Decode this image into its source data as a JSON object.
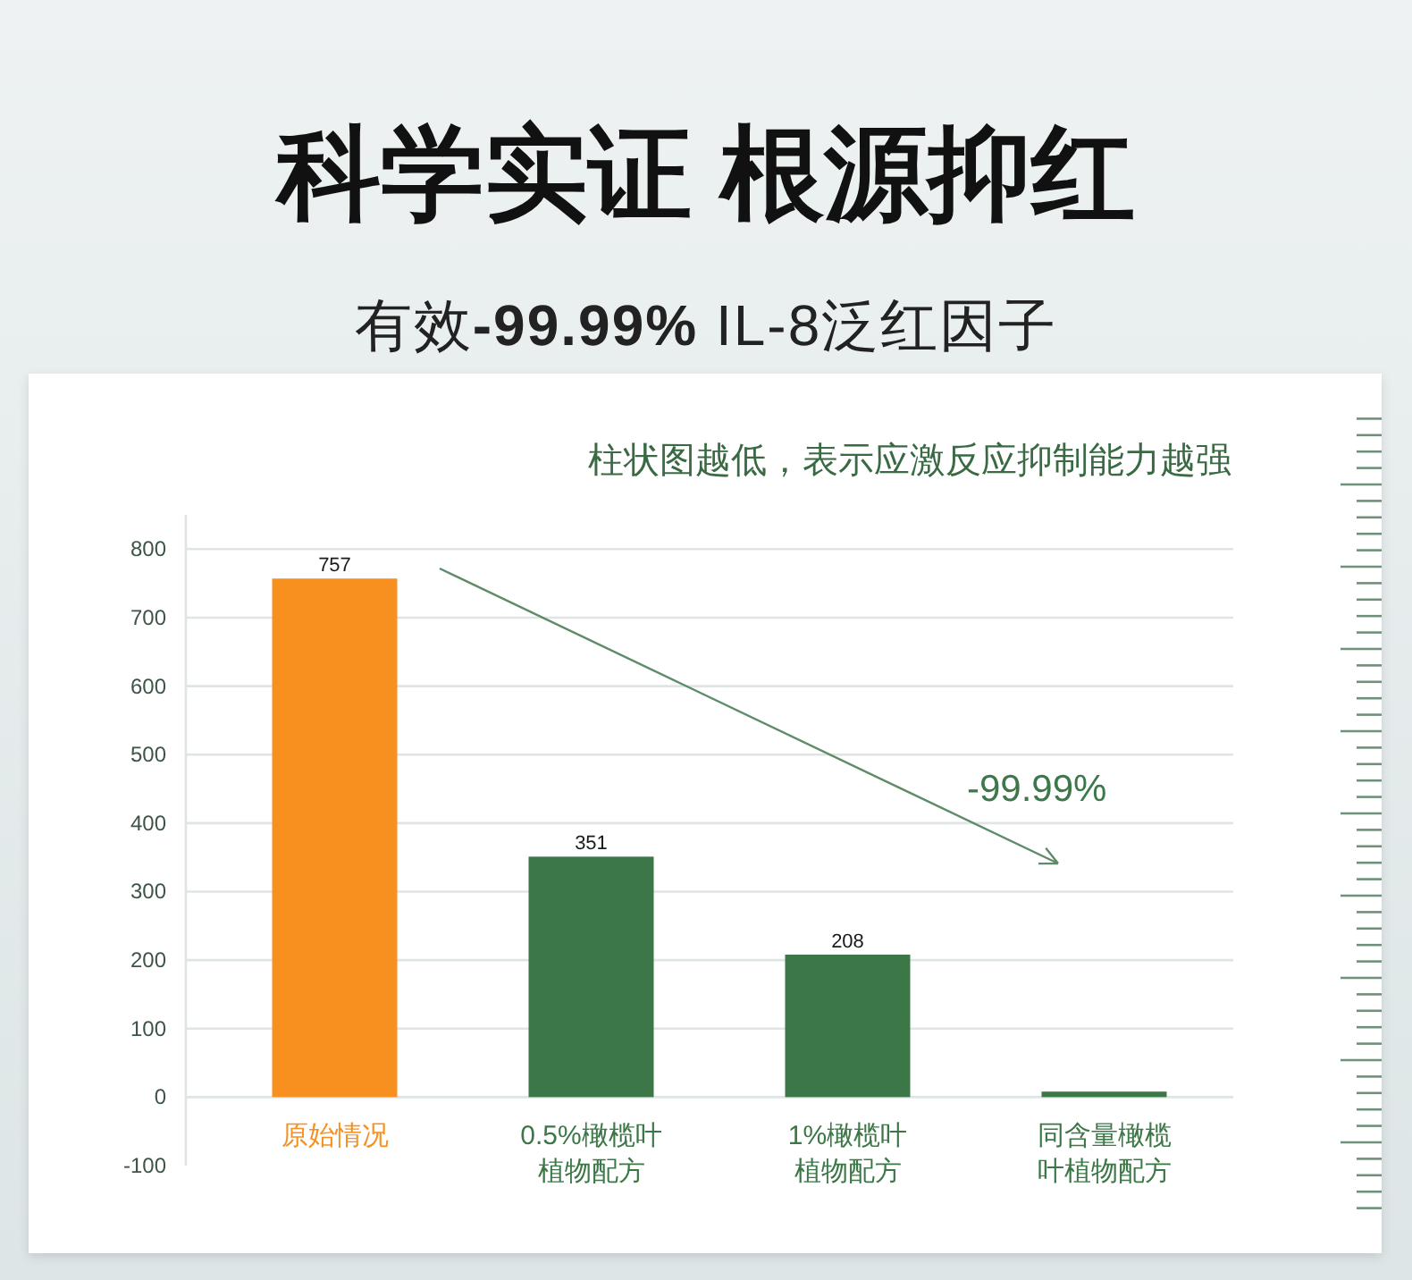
{
  "chart_data": {
    "type": "bar",
    "title": "科学实证 根源抑红",
    "subtitle": "有效-99.99% IL-8泛红因子",
    "categories": [
      "原始情况",
      "0.5%橄榄叶植物配方",
      "1%橄榄叶植物配方",
      "同含量橄榄叶植物配方"
    ],
    "values": [
      757,
      351,
      208,
      8
    ],
    "colors": [
      "#f7901e",
      "#3c7747",
      "#3c7747",
      "#3c7747"
    ],
    "value_labels": [
      "757",
      "351",
      "208",
      null
    ],
    "ylim": [
      -100,
      850
    ],
    "yticks": [
      -100,
      0,
      100,
      200,
      300,
      400,
      500,
      600,
      700,
      800
    ],
    "grid": "y",
    "annotations": [
      "柱状图越低，表示应激反应抑制能力越强",
      "-99.99%"
    ]
  }
}
